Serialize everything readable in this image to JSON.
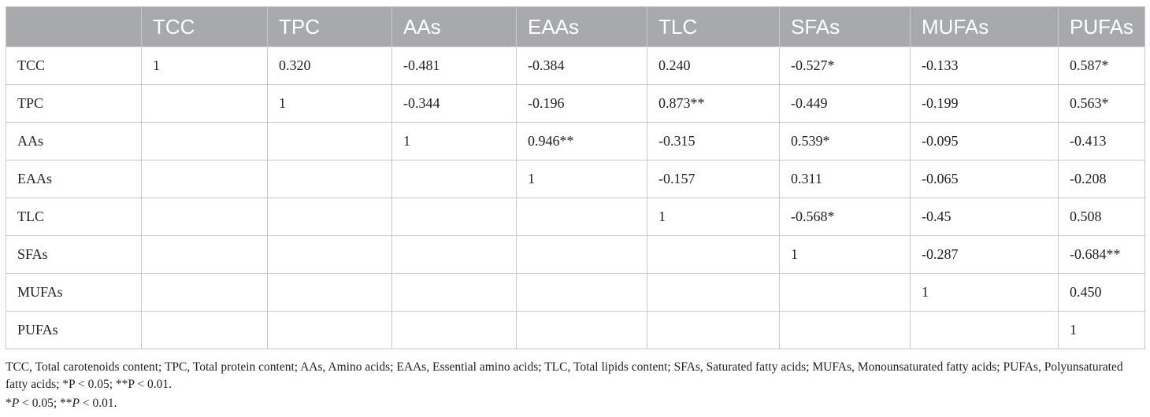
{
  "table": {
    "corner": "",
    "headers": [
      "TCC",
      "TPC",
      "AAs",
      "EAAs",
      "TLC",
      "SFAs",
      "MUFAs",
      "PUFAs"
    ],
    "rows": [
      {
        "label": "TCC",
        "cells": [
          "1",
          "0.320",
          "-0.481",
          "-0.384",
          "0.240",
          "-0.527*",
          "-0.133",
          "0.587*"
        ]
      },
      {
        "label": "TPC",
        "cells": [
          "",
          "1",
          "-0.344",
          "-0.196",
          "0.873**",
          "-0.449",
          "-0.199",
          "0.563*"
        ]
      },
      {
        "label": "AAs",
        "cells": [
          "",
          "",
          "1",
          "0.946**",
          "-0.315",
          "0.539*",
          "-0.095",
          "-0.413"
        ]
      },
      {
        "label": "EAAs",
        "cells": [
          "",
          "",
          "",
          "1",
          "-0.157",
          "0.311",
          "-0.065",
          "-0.208"
        ]
      },
      {
        "label": "TLC",
        "cells": [
          "",
          "",
          "",
          "",
          "1",
          "-0.568*",
          "-0.45",
          "0.508"
        ]
      },
      {
        "label": "SFAs",
        "cells": [
          "",
          "",
          "",
          "",
          "",
          "1",
          "-0.287",
          "-0.684**"
        ]
      },
      {
        "label": "MUFAs",
        "cells": [
          "",
          "",
          "",
          "",
          "",
          "",
          "1",
          "0.450"
        ]
      },
      {
        "label": "PUFAs",
        "cells": [
          "",
          "",
          "",
          "",
          "",
          "",
          "",
          "1"
        ]
      }
    ]
  },
  "footnotes": {
    "abbreviations": "TCC, Total carotenoids content; TPC, Total protein content; AAs, Amino acids; EAAs, Essential amino acids; TLC, Total lipids content; SFAs, Saturated fatty acids; MUFAs, Monounsaturated fatty acids; PUFAs, Polyunsaturated fatty acids; *P < 0.05; **P < 0.01.",
    "significance": {
      "star1": "*",
      "p1": "P",
      "cond1": " < 0.05; ",
      "star2": "**",
      "p2": "P",
      "cond2": " < 0.01."
    }
  },
  "colors": {
    "header_bg": "#a7a9ac",
    "header_text": "#ffffff",
    "grid": "#c9c9c9",
    "body_text": "#222222"
  }
}
